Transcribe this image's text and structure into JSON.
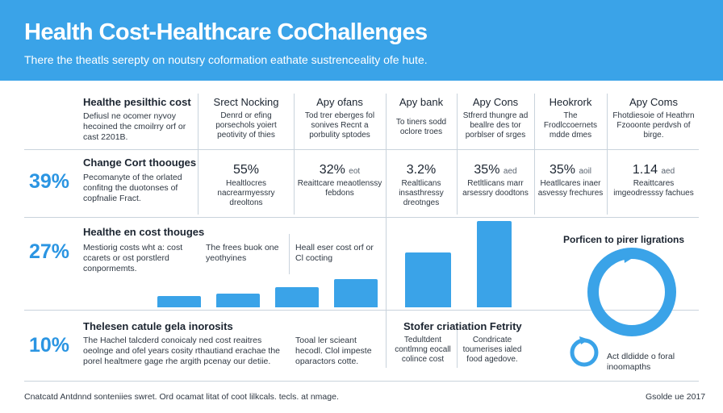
{
  "header": {
    "title": "Health Cost-Healthcare CoChallenges",
    "subtitle": "There the theatls serepty on noutsry coformation eathate sustrenceality ofe hute."
  },
  "top_row": {
    "heading": "Healthe pesilthic cost",
    "text": "Defiusl ne ocomer nyvoy hecoined the cmoilrry orf or cast 2201B.",
    "columns": [
      {
        "heading": "Srect Nocking",
        "text": "Denrd or efing porsechols yoiert peotivity of thies"
      },
      {
        "heading": "Apy ofans",
        "text": "Tod trer eberges fol sonives Recnt a porbulity sptodes"
      },
      {
        "heading": "Apy bank",
        "text": "To tiners sodd oclore troes"
      },
      {
        "heading": "Apy Cons",
        "text": "Stfrerd thungre ad beallre des tor porblser of srges"
      },
      {
        "heading": "Heokrork",
        "text": "The Frodlccoernets mdde dmes"
      },
      {
        "heading": "Apy Coms",
        "text": "Fhotdiesoie of Heathrn Fzooonte perdvsh of birge."
      }
    ]
  },
  "row2": {
    "percent": "39%",
    "heading": "Change Cort thoouges",
    "text": "Pecomanyte of the orlated confitng the duotonses of copfnalie Fract.",
    "columns": [
      {
        "value": "55%",
        "suffix": "",
        "text": "Healtlocres nacrearmyessry dreoltons"
      },
      {
        "value": "32%",
        "suffix": "eot",
        "text": "Reaittcare meaotlenssy febdons"
      },
      {
        "value": "3.2%",
        "suffix": "",
        "text": "Realtlicans insasthressy dreotnges"
      },
      {
        "value": "35%",
        "suffix": "aed",
        "text": "Retltlicans marr arsessry doodtons"
      },
      {
        "value": "35%",
        "suffix": "aoil",
        "text": "Heatllcares inaer asvessy frechures"
      },
      {
        "value": "1.14",
        "suffix": "aed",
        "text": "Reaittcares imgeodresssy fachues"
      }
    ]
  },
  "row3": {
    "percent": "27%",
    "heading": "Healthe en cost thouges",
    "text": "Mestiorig costs wht a: cost ccarets or ost porstlerd conpormemts.",
    "col1_text": "The frees buok one yeothyines",
    "col2_text": "Heall eser cost orf or Cl cocting",
    "bar_values": [
      13,
      16,
      23,
      33,
      64,
      100
    ],
    "circle_title": "Porficen to pirer ligrations"
  },
  "row4": {
    "percent": "10%",
    "heading": "Thelesen catule gela inorosits",
    "text": "The Hachel talcderd conoicaly ned cost reaitres oeolnge and ofel years cosity rthautiand erachae the porel healtmere gage rhe argith pcenay our detiie.",
    "col_text": "Tooal ler scieant hecodl. Clol impeste oparactors cotte.",
    "mid_heading": "Stofer criatiation Fetrity",
    "mid_text1": "Tedultdent contlmng eocall colince cost",
    "mid_text2": "Condricate toumerises ialed food agedove.",
    "small_circle_text": "Act dldidde o foral inoomapths"
  },
  "footer": {
    "left": "Cnatcatd Antdnnd sonteniies swret. Ord ocamat litat of coot lilkcals. tecls. at nmage.",
    "right": "Gsolde ue 2017"
  },
  "colors": {
    "accent": "#3aa3e8",
    "percent": "#2b95e2",
    "divider": "#c9d3dc"
  }
}
